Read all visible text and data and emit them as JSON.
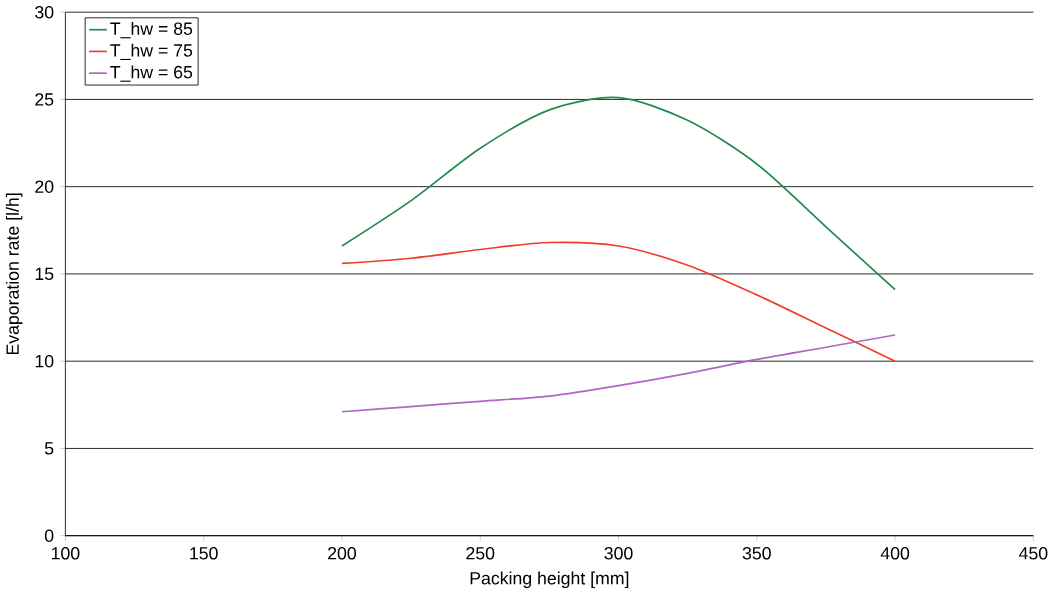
{
  "chart_data": {
    "type": "line",
    "xlabel": "Packing height [mm]",
    "ylabel": "Evaporation rate [l/h]",
    "x": [
      200,
      225,
      250,
      275,
      300,
      325,
      350,
      375,
      400
    ],
    "series": [
      {
        "name": "T_hw = 85",
        "color": "#1f8a4c",
        "values": [
          16.6,
          19.2,
          22.2,
          24.4,
          25.1,
          23.8,
          21.3,
          17.7,
          14.1
        ]
      },
      {
        "name": "T_hw = 75",
        "color": "#f03c2c",
        "values": [
          15.6,
          15.9,
          16.4,
          16.8,
          16.6,
          15.5,
          13.8,
          11.9,
          10.0
        ]
      },
      {
        "name": "T_hw = 65",
        "color": "#b066c4",
        "values": [
          7.1,
          7.4,
          7.7,
          8.0,
          8.6,
          9.3,
          10.1,
          10.8,
          11.5
        ]
      }
    ],
    "xlim": [
      100,
      450
    ],
    "xticks": [
      100,
      150,
      200,
      250,
      300,
      350,
      400,
      450
    ],
    "ylim": [
      0,
      30
    ],
    "yticks": [
      0,
      5,
      10,
      15,
      20,
      25,
      30
    ],
    "grid": "y",
    "legend": "top left",
    "marker": "none",
    "line_style": "solid"
  }
}
